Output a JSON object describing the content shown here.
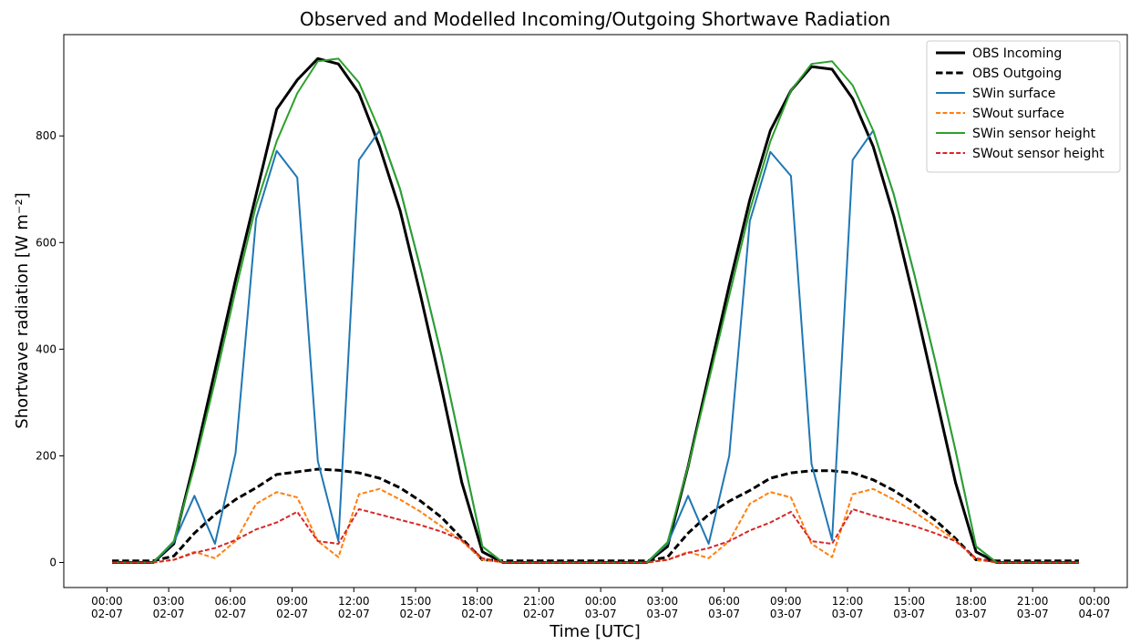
{
  "chart_data": {
    "type": "line",
    "title": "Observed and Modelled Incoming/Outgoing Shortwave Radiation",
    "xlabel": "Time [UTC]",
    "ylabel": "Shortwave radiation [W m⁻²]",
    "x": [
      "02-07 00:15",
      "02-07 01:15",
      "02-07 02:15",
      "02-07 03:15",
      "02-07 04:15",
      "02-07 05:15",
      "02-07 06:15",
      "02-07 07:15",
      "02-07 08:15",
      "02-07 09:15",
      "02-07 10:15",
      "02-07 11:15",
      "02-07 12:15",
      "02-07 13:15",
      "02-07 14:15",
      "02-07 15:15",
      "02-07 16:15",
      "02-07 17:15",
      "02-07 18:15",
      "02-07 19:15",
      "02-07 20:15",
      "02-07 21:15",
      "02-07 22:15",
      "02-07 23:15",
      "03-07 00:15",
      "03-07 01:15",
      "03-07 02:15",
      "03-07 03:15",
      "03-07 04:15",
      "03-07 05:15",
      "03-07 06:15",
      "03-07 07:15",
      "03-07 08:15",
      "03-07 09:15",
      "03-07 10:15",
      "03-07 11:15",
      "03-07 12:15",
      "03-07 13:15",
      "03-07 14:15",
      "03-07 15:15",
      "03-07 16:15",
      "03-07 17:15",
      "03-07 18:15",
      "03-07 19:15",
      "03-07 20:15",
      "03-07 21:15",
      "03-07 22:15",
      "03-07 23:15"
    ],
    "series": [
      {
        "name": "OBS Incoming",
        "color": "#000000",
        "linestyle": "solid",
        "linewidth": 3,
        "values": [
          0,
          0,
          0,
          35,
          190,
          360,
          530,
          690,
          850,
          905,
          945,
          935,
          880,
          780,
          660,
          500,
          330,
          150,
          20,
          0,
          0,
          0,
          0,
          0,
          0,
          0,
          0,
          30,
          180,
          350,
          520,
          680,
          810,
          885,
          930,
          925,
          870,
          780,
          650,
          490,
          320,
          150,
          20,
          0,
          0,
          0,
          0,
          0
        ]
      },
      {
        "name": "OBS Outgoing",
        "color": "#000000",
        "linestyle": "dashed",
        "linewidth": 3,
        "values": [
          3,
          3,
          3,
          12,
          55,
          90,
          118,
          140,
          165,
          170,
          175,
          173,
          168,
          158,
          140,
          115,
          85,
          45,
          5,
          3,
          3,
          3,
          3,
          3,
          3,
          3,
          3,
          10,
          55,
          90,
          115,
          135,
          158,
          168,
          172,
          172,
          168,
          155,
          135,
          110,
          80,
          45,
          5,
          3,
          3,
          3,
          3,
          3
        ]
      },
      {
        "name": "SWin surface",
        "color": "#1f77b4",
        "linestyle": "solid",
        "linewidth": 2,
        "values": [
          0,
          0,
          0,
          38,
          125,
          35,
          205,
          645,
          772,
          722,
          190,
          40,
          755,
          810,
          700,
          550,
          390,
          210,
          30,
          0,
          0,
          0,
          0,
          0,
          0,
          0,
          0,
          35,
          125,
          35,
          200,
          640,
          770,
          725,
          185,
          42,
          755,
          810,
          690,
          540,
          380,
          210,
          30,
          0,
          0,
          0,
          0,
          0
        ]
      },
      {
        "name": "SWout surface",
        "color": "#ff7f0e",
        "linestyle": "dashed",
        "linewidth": 2,
        "values": [
          0,
          0,
          0,
          5,
          20,
          8,
          40,
          110,
          132,
          122,
          40,
          10,
          128,
          138,
          118,
          95,
          68,
          40,
          5,
          0,
          0,
          0,
          0,
          0,
          0,
          0,
          0,
          5,
          20,
          8,
          40,
          110,
          132,
          122,
          35,
          10,
          128,
          138,
          118,
          95,
          68,
          42,
          5,
          0,
          0,
          0,
          0,
          0
        ]
      },
      {
        "name": "SWin sensor height",
        "color": "#2ca02c",
        "linestyle": "solid",
        "linewidth": 2,
        "values": [
          0,
          0,
          0,
          40,
          180,
          340,
          510,
          670,
          790,
          880,
          940,
          945,
          900,
          810,
          700,
          550,
          390,
          210,
          30,
          0,
          0,
          0,
          0,
          0,
          0,
          0,
          0,
          38,
          180,
          340,
          500,
          660,
          790,
          885,
          935,
          940,
          895,
          810,
          690,
          540,
          380,
          210,
          30,
          0,
          0,
          0,
          0,
          0
        ]
      },
      {
        "name": "SWout sensor height",
        "color": "#d62728",
        "linestyle": "dashed",
        "linewidth": 2,
        "values": [
          0,
          0,
          0,
          5,
          18,
          27,
          42,
          62,
          75,
          95,
          40,
          35,
          100,
          90,
          80,
          70,
          58,
          42,
          8,
          0,
          0,
          0,
          0,
          0,
          0,
          0,
          0,
          5,
          18,
          27,
          40,
          60,
          75,
          95,
          40,
          35,
          100,
          88,
          78,
          68,
          55,
          40,
          8,
          0,
          0,
          0,
          0,
          0
        ]
      }
    ],
    "xlim": [
      "01-07 21:54",
      "04-07 01:36"
    ],
    "xticks": [
      {
        "value": "02-07 00:00",
        "label": "00:00\n02-07"
      },
      {
        "value": "02-07 03:00",
        "label": "03:00\n02-07"
      },
      {
        "value": "02-07 06:00",
        "label": "06:00\n02-07"
      },
      {
        "value": "02-07 09:00",
        "label": "09:00\n02-07"
      },
      {
        "value": "02-07 12:00",
        "label": "12:00\n02-07"
      },
      {
        "value": "02-07 15:00",
        "label": "15:00\n02-07"
      },
      {
        "value": "02-07 18:00",
        "label": "18:00\n02-07"
      },
      {
        "value": "02-07 21:00",
        "label": "21:00\n02-07"
      },
      {
        "value": "03-07 00:00",
        "label": "00:00\n03-07"
      },
      {
        "value": "03-07 03:00",
        "label": "03:00\n03-07"
      },
      {
        "value": "03-07 06:00",
        "label": "06:00\n03-07"
      },
      {
        "value": "03-07 09:00",
        "label": "09:00\n03-07"
      },
      {
        "value": "03-07 12:00",
        "label": "12:00\n03-07"
      },
      {
        "value": "03-07 15:00",
        "label": "15:00\n03-07"
      },
      {
        "value": "03-07 18:00",
        "label": "18:00\n03-07"
      },
      {
        "value": "03-07 21:00",
        "label": "21:00\n03-07"
      },
      {
        "value": "04-07 00:00",
        "label": "00:00\n04-07"
      }
    ],
    "ylim": [
      -47,
      990
    ],
    "yticks": [
      0,
      200,
      400,
      600,
      800
    ],
    "legend": "upper right"
  }
}
